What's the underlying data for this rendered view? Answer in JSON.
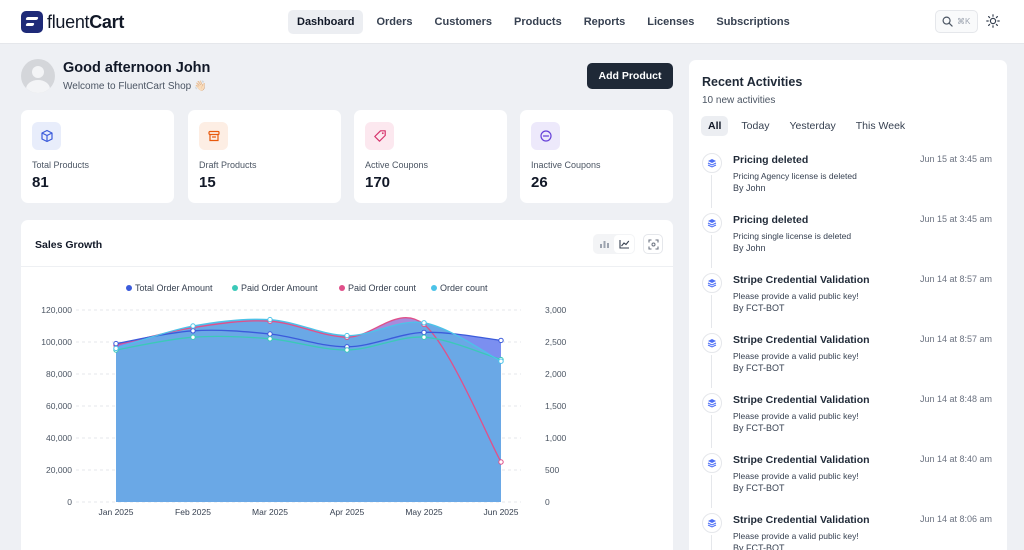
{
  "brand": {
    "name_light": "fluent",
    "name_bold": "Cart"
  },
  "nav": [
    {
      "label": "Dashboard",
      "active": true
    },
    {
      "label": "Orders"
    },
    {
      "label": "Customers"
    },
    {
      "label": "Products"
    },
    {
      "label": "Reports"
    },
    {
      "label": "Licenses"
    },
    {
      "label": "Subscriptions"
    }
  ],
  "search": {
    "shortcut": "⌘K",
    "icon": "search-icon"
  },
  "theme_toggle": {
    "icon": "sun-icon"
  },
  "greeting": {
    "title": "Good afternoon John",
    "subtitle": "Welcome to FluentCart Shop 👋🏻"
  },
  "add_product_label": "Add Product",
  "stats": [
    {
      "label": "Total Products",
      "value": "81",
      "icon": "box-icon",
      "color": "#3b5bdb",
      "bg": "#e8edfb"
    },
    {
      "label": "Draft Products",
      "value": "15",
      "icon": "archive-icon",
      "color": "#e8590c",
      "bg": "#fdeee4"
    },
    {
      "label": "Active Coupons",
      "value": "170",
      "icon": "tag-icon",
      "color": "#d6336c",
      "bg": "#fce8ef"
    },
    {
      "label": "Inactive Coupons",
      "value": "26",
      "icon": "minus-circle-icon",
      "color": "#6741d9",
      "bg": "#ede9fb"
    }
  ],
  "sales": {
    "title": "Sales Growth",
    "tools": {
      "bar": "bar-chart-icon",
      "line": "line-chart-icon",
      "expand": "expand-icon"
    }
  },
  "chart_data": {
    "type": "area",
    "title": "Sales Growth",
    "categories": [
      "Jan 2025",
      "Feb 2025",
      "Mar 2025",
      "Apr 2025",
      "May 2025",
      "Jun 2025"
    ],
    "y_left": {
      "ticks": [
        "0",
        "20,000",
        "40,000",
        "60,000",
        "80,000",
        "100,000",
        "120,000"
      ],
      "range": [
        0,
        120000
      ]
    },
    "y_right": {
      "ticks": [
        "0",
        "500",
        "1,000",
        "1,500",
        "2,000",
        "2,500",
        "3,000"
      ],
      "range": [
        0,
        3000
      ]
    },
    "legend_position": "top-center",
    "grid": true,
    "series": [
      {
        "name": "Total Order Amount",
        "axis": "left",
        "color": "#3b5bdb",
        "values": [
          99000,
          107000,
          105000,
          97000,
          106000,
          101000
        ]
      },
      {
        "name": "Paid Order Amount",
        "axis": "left",
        "color": "#3bc9b8",
        "values": [
          95000,
          103000,
          102000,
          95000,
          103000,
          89000
        ]
      },
      {
        "name": "Paid Order count",
        "axis": "right",
        "color": "#e0508a",
        "values": [
          2450,
          2725,
          2825,
          2575,
          2775,
          625
        ]
      },
      {
        "name": "Order count",
        "axis": "right",
        "color": "#4cc3e8",
        "values": [
          2400,
          2750,
          2850,
          2600,
          2800,
          2200
        ]
      }
    ]
  },
  "activities": {
    "title": "Recent Activities",
    "subtitle": "10 new activities",
    "tabs": [
      {
        "label": "All",
        "active": true
      },
      {
        "label": "Today"
      },
      {
        "label": "Yesterday"
      },
      {
        "label": "This Week"
      }
    ],
    "items": [
      {
        "title": "Pricing deleted",
        "time": "Jun 15 at 3:45 am",
        "desc": "Pricing Agency license is deleted",
        "by": "By John"
      },
      {
        "title": "Pricing deleted",
        "time": "Jun 15 at 3:45 am",
        "desc": "Pricing single license is deleted",
        "by": "By John"
      },
      {
        "title": "Stripe Credential Validation",
        "time": "Jun 14 at 8:57 am",
        "desc": "Please provide a valid public key!",
        "by": "By FCT-BOT"
      },
      {
        "title": "Stripe Credential Validation",
        "time": "Jun 14 at 8:57 am",
        "desc": "Please provide a valid public key!",
        "by": "By FCT-BOT"
      },
      {
        "title": "Stripe Credential Validation",
        "time": "Jun 14 at 8:48 am",
        "desc": "Please provide a valid public key!",
        "by": "By FCT-BOT"
      },
      {
        "title": "Stripe Credential Validation",
        "time": "Jun 14 at 8:40 am",
        "desc": "Please provide a valid public key!",
        "by": "By FCT-BOT"
      },
      {
        "title": "Stripe Credential Validation",
        "time": "Jun 14 at 8:06 am",
        "desc": "Please provide a valid public key!",
        "by": "By FCT-BOT"
      }
    ]
  }
}
